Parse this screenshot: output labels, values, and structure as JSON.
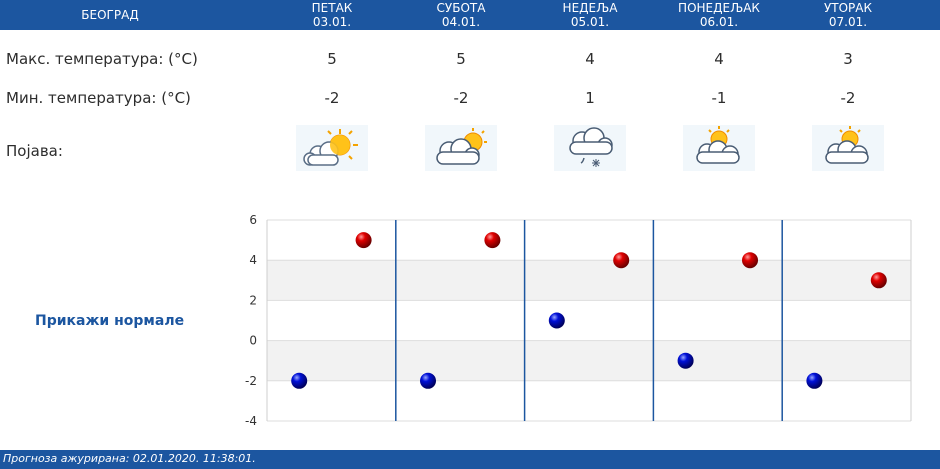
{
  "header": {
    "city": "БЕОГРАД",
    "days": [
      {
        "name": "ПЕТАК",
        "date": "03.01."
      },
      {
        "name": "СУБОТА",
        "date": "04.01."
      },
      {
        "name": "НЕДЕЉА",
        "date": "05.01."
      },
      {
        "name": "ПОНЕДЕЉАК",
        "date": "06.01."
      },
      {
        "name": "УТОРАК",
        "date": "07.01."
      }
    ]
  },
  "rows": {
    "max_label": "Макс. температура: (°C)",
    "min_label": "Мин. температура: (°C)",
    "phenomenon_label": "Појава:",
    "max_values": [
      "5",
      "5",
      "4",
      "4",
      "3"
    ],
    "min_values": [
      "-2",
      "-2",
      "1",
      "-1",
      "-2"
    ]
  },
  "weather_icons": [
    "sun-cloud-icon",
    "cloud-sun-icon",
    "cloud-rain-snow-icon",
    "sun-cloud-icon",
    "sun-cloud-icon"
  ],
  "normals_link": "Прикажи нормале",
  "footer": {
    "text": "Прогноза ажурирана:  02.01.2020. 11:38:01."
  },
  "colors": {
    "header_bg": "#1c56a0",
    "max_point": "#cc0000",
    "min_point": "#0000cc",
    "separator": "#1c56a0"
  },
  "chart_data": {
    "type": "scatter",
    "ylim": [
      -4,
      6
    ],
    "yticks": [
      "6",
      "4",
      "2",
      "0",
      "-2",
      "-4"
    ],
    "categories": [
      "03.01.",
      "04.01.",
      "05.01.",
      "06.01.",
      "07.01."
    ],
    "series": [
      {
        "values": [
          5,
          5,
          4,
          4,
          3
        ],
        "color": "#cc0000"
      },
      {
        "values": [
          -2,
          -2,
          1,
          -1,
          -2
        ],
        "color": "#0000cc"
      }
    ],
    "grid": true
  }
}
